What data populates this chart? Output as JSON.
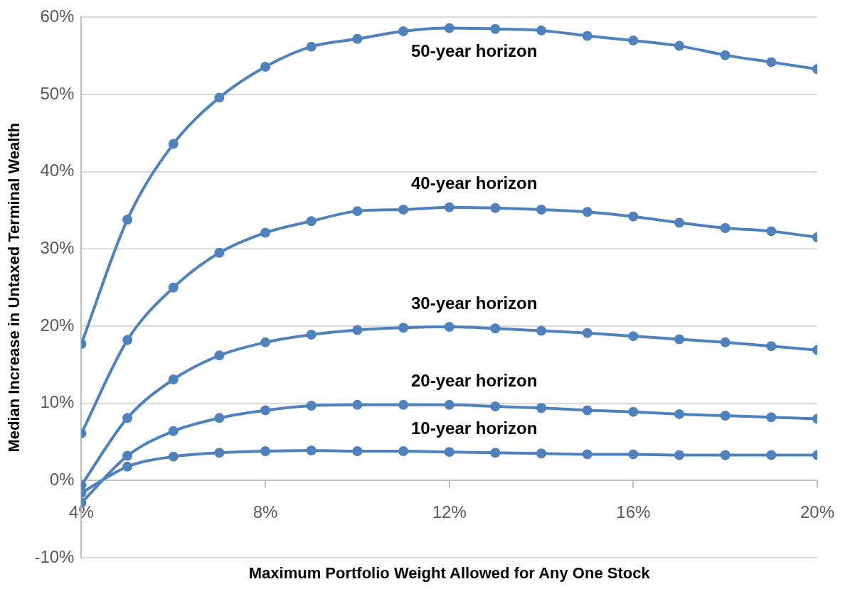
{
  "chart_data": {
    "type": "line",
    "xlabel": "Maximum Portfolio Weight Allowed for Any One Stock",
    "ylabel": "Median Increase in Untaxed Terminal Wealth",
    "x": [
      4,
      5,
      6,
      7,
      8,
      9,
      10,
      11,
      12,
      13,
      14,
      15,
      16,
      17,
      18,
      19,
      20
    ],
    "series": [
      {
        "name": "50-year horizon",
        "color": "#4f81bd",
        "values": [
          17.7,
          33.8,
          43.6,
          49.6,
          53.6,
          56.2,
          57.2,
          58.2,
          58.6,
          58.5,
          58.3,
          57.6,
          57.0,
          56.3,
          55.1,
          54.2,
          53.3
        ]
      },
      {
        "name": "40-year horizon",
        "color": "#4f81bd",
        "values": [
          6.1,
          18.2,
          25.0,
          29.5,
          32.1,
          33.6,
          34.9,
          35.1,
          35.4,
          35.3,
          35.1,
          34.8,
          34.2,
          33.4,
          32.7,
          32.3,
          31.5
        ]
      },
      {
        "name": "30-year horizon",
        "color": "#4f81bd",
        "values": [
          -0.6,
          8.1,
          13.1,
          16.2,
          17.9,
          18.9,
          19.5,
          19.8,
          19.9,
          19.7,
          19.4,
          19.1,
          18.7,
          18.3,
          17.9,
          17.4,
          16.9
        ]
      },
      {
        "name": "20-year horizon",
        "color": "#4f81bd",
        "values": [
          -2.9,
          3.2,
          6.4,
          8.1,
          9.1,
          9.7,
          9.8,
          9.8,
          9.8,
          9.6,
          9.4,
          9.1,
          8.9,
          8.6,
          8.4,
          8.2,
          8.0
        ]
      },
      {
        "name": "10-year horizon",
        "color": "#4f81bd",
        "values": [
          -1.6,
          1.8,
          3.1,
          3.6,
          3.8,
          3.9,
          3.8,
          3.8,
          3.7,
          3.6,
          3.5,
          3.4,
          3.4,
          3.3,
          3.3,
          3.3,
          3.3
        ]
      }
    ],
    "xlim": [
      4,
      20
    ],
    "xticks": [
      {
        "value": 4,
        "label": "4%"
      },
      {
        "value": 8,
        "label": "8%"
      },
      {
        "value": 12,
        "label": "12%"
      },
      {
        "value": 16,
        "label": "16%"
      },
      {
        "value": 20,
        "label": "20%"
      }
    ],
    "ylim": [
      -10,
      60
    ],
    "yticks": [
      {
        "value": -10,
        "label": "-10%"
      },
      {
        "value": 0,
        "label": "0%"
      },
      {
        "value": 10,
        "label": "10%"
      },
      {
        "value": 20,
        "label": "20%"
      },
      {
        "value": 30,
        "label": "30%"
      },
      {
        "value": 40,
        "label": "40%"
      },
      {
        "value": 50,
        "label": "50%"
      },
      {
        "value": 60,
        "label": "60%"
      }
    ],
    "grid": "y",
    "legend": false,
    "marker": "circle",
    "line_style": "solid"
  }
}
